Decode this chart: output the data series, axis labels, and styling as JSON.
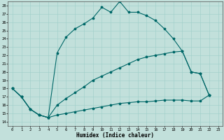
{
  "xlabel": "Humidex (Indice chaleur)",
  "bg_color": "#c2e0db",
  "line_color": "#006868",
  "grid_color": "#9ecec8",
  "xlim": [
    -0.5,
    23.5
  ],
  "ylim": [
    13.5,
    28.5
  ],
  "xticks": [
    0,
    1,
    2,
    3,
    4,
    5,
    6,
    7,
    8,
    9,
    10,
    11,
    12,
    13,
    14,
    15,
    16,
    17,
    18,
    19,
    20,
    21,
    22,
    23
  ],
  "yticks": [
    14,
    15,
    16,
    17,
    18,
    19,
    20,
    21,
    22,
    23,
    24,
    25,
    26,
    27,
    28
  ],
  "s1_x": [
    0,
    1,
    2,
    3,
    4,
    5,
    6,
    7,
    8,
    9,
    10,
    11,
    12,
    13,
    14,
    15,
    16,
    17,
    18,
    19,
    20,
    21,
    22
  ],
  "s1_y": [
    18.0,
    17.0,
    15.5,
    14.8,
    14.5,
    22.3,
    24.2,
    25.2,
    25.8,
    26.5,
    27.8,
    27.2,
    28.5,
    27.2,
    27.2,
    26.8,
    26.2,
    25.2,
    24.0,
    22.5,
    20.0,
    19.8,
    17.2
  ],
  "s2_x": [
    0,
    1,
    2,
    3,
    4,
    5,
    6,
    7,
    8,
    9,
    10,
    11,
    12,
    13,
    14,
    15,
    16,
    17,
    18,
    19,
    20,
    21,
    22
  ],
  "s2_y": [
    18.0,
    17.0,
    15.5,
    14.8,
    14.5,
    16.0,
    16.8,
    17.5,
    18.2,
    19.0,
    19.5,
    20.0,
    20.5,
    21.0,
    21.5,
    21.8,
    22.0,
    22.2,
    22.4,
    22.5,
    20.0,
    19.8,
    17.2
  ],
  "s3_x": [
    0,
    1,
    2,
    3,
    4,
    5,
    6,
    7,
    8,
    9,
    10,
    11,
    12,
    13,
    14,
    15,
    16,
    17,
    18,
    19,
    20,
    21,
    22
  ],
  "s3_y": [
    18.0,
    17.0,
    15.5,
    14.8,
    14.5,
    14.8,
    15.0,
    15.2,
    15.4,
    15.6,
    15.8,
    16.0,
    16.2,
    16.3,
    16.4,
    16.4,
    16.5,
    16.6,
    16.6,
    16.6,
    16.5,
    16.5,
    17.2
  ],
  "figsize": [
    3.2,
    2.0
  ],
  "dpi": 100
}
